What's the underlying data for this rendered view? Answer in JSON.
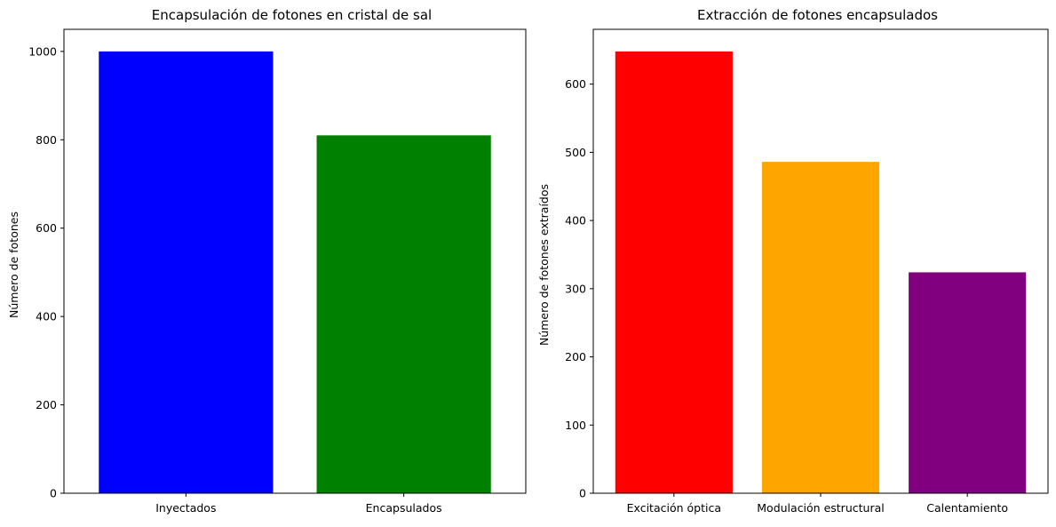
{
  "chart_data": [
    {
      "type": "bar",
      "title": "Encapsulación de fotones en cristal de sal",
      "xlabel": "",
      "ylabel": "Número de fotones",
      "categories": [
        "Inyectados",
        "Encapsulados"
      ],
      "values": [
        1000,
        810
      ],
      "colors": [
        "#0000ff",
        "#008000"
      ],
      "ylim": [
        0,
        1050
      ],
      "yticks": [
        0,
        200,
        400,
        600,
        800,
        1000
      ],
      "grid": false
    },
    {
      "type": "bar",
      "title": "Extracción de fotones encapsulados",
      "xlabel": "",
      "ylabel": "Número de fotones extraídos",
      "categories": [
        "Excitación óptica",
        "Modulación estructural",
        "Calentamiento"
      ],
      "values": [
        648,
        486,
        324
      ],
      "colors": [
        "#ff0000",
        "#ffa500",
        "#800080"
      ],
      "ylim": [
        0,
        680.4
      ],
      "yticks": [
        0,
        100,
        200,
        300,
        400,
        500,
        600
      ],
      "grid": false
    }
  ]
}
